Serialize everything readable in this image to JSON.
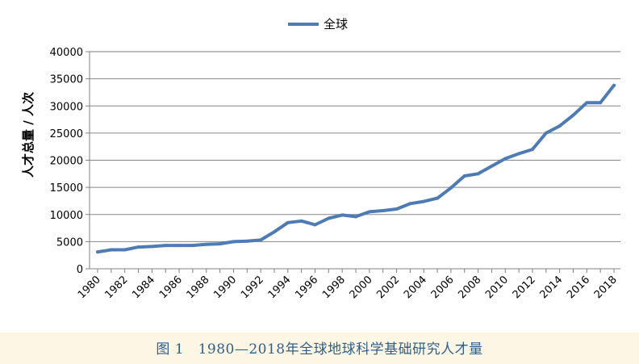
{
  "chart_data": {
    "type": "line",
    "title": "",
    "xlabel": "",
    "ylabel": "人才总量 / 人次",
    "ylim": [
      0,
      40000
    ],
    "y_ticks": [
      0,
      5000,
      10000,
      15000,
      20000,
      25000,
      30000,
      35000,
      40000
    ],
    "x_tick_labels": [
      "1980",
      "1982",
      "1984",
      "1986",
      "1988",
      "1990",
      "1992",
      "1994",
      "1996",
      "1998",
      "2000",
      "2002",
      "2004",
      "2006",
      "2008",
      "2010",
      "2012",
      "2014",
      "2016",
      "2018"
    ],
    "grid": true,
    "legend_position": "top-center",
    "series": [
      {
        "name": "全球",
        "color": "#4e7bb5",
        "x": [
          1980,
          1981,
          1982,
          1983,
          1984,
          1985,
          1986,
          1987,
          1988,
          1989,
          1990,
          1991,
          1992,
          1993,
          1994,
          1995,
          1996,
          1997,
          1998,
          1999,
          2000,
          2001,
          2002,
          2003,
          2004,
          2005,
          2006,
          2007,
          2008,
          2009,
          2010,
          2011,
          2012,
          2013,
          2014,
          2015,
          2016,
          2017,
          2018
        ],
        "values": [
          3100,
          3500,
          3500,
          4000,
          4100,
          4300,
          4300,
          4300,
          4500,
          4600,
          5000,
          5100,
          5300,
          6800,
          8500,
          8800,
          8100,
          9300,
          9900,
          9600,
          10500,
          10700,
          11000,
          12000,
          12400,
          13000,
          14900,
          17100,
          17500,
          18900,
          20300,
          21200,
          22000,
          25000,
          26300,
          28300,
          30600,
          30600,
          33800
        ]
      }
    ]
  },
  "caption": "图 1　1980—2018年全球地球科学基础研究人才量"
}
